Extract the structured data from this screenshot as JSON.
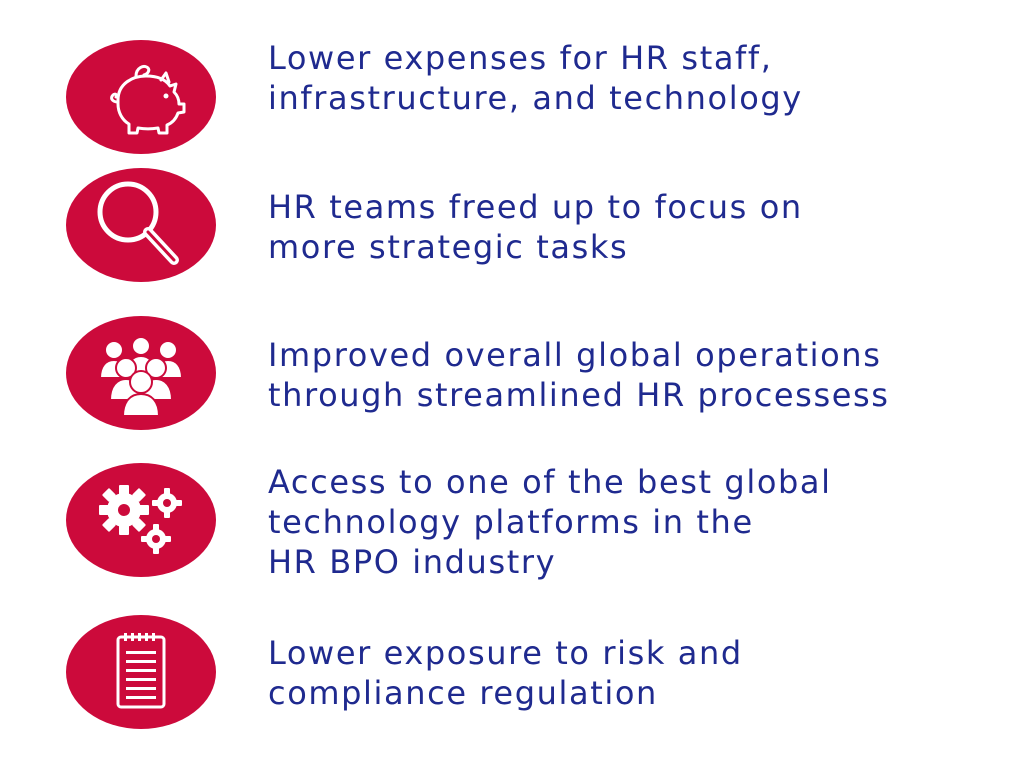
{
  "accent_color": "#cc0a3b",
  "text_color": "#1f2a8f",
  "benefits": [
    {
      "icon": "piggy-bank-icon",
      "lines": [
        "Lower expenses for HR staff,",
        "infrastructure, and technology"
      ]
    },
    {
      "icon": "magnifying-glass-icon",
      "lines": [
        "HR teams freed up to focus on",
        "more strategic tasks"
      ]
    },
    {
      "icon": "people-group-icon",
      "lines": [
        "Improved overall global operations",
        "through streamlined HR processess"
      ]
    },
    {
      "icon": "gears-icon",
      "lines": [
        "Access to one of the best global",
        "technology platforms in the",
        "HR BPO industry"
      ]
    },
    {
      "icon": "notepad-icon",
      "lines": [
        "Lower exposure to risk and",
        "compliance regulation"
      ]
    }
  ]
}
